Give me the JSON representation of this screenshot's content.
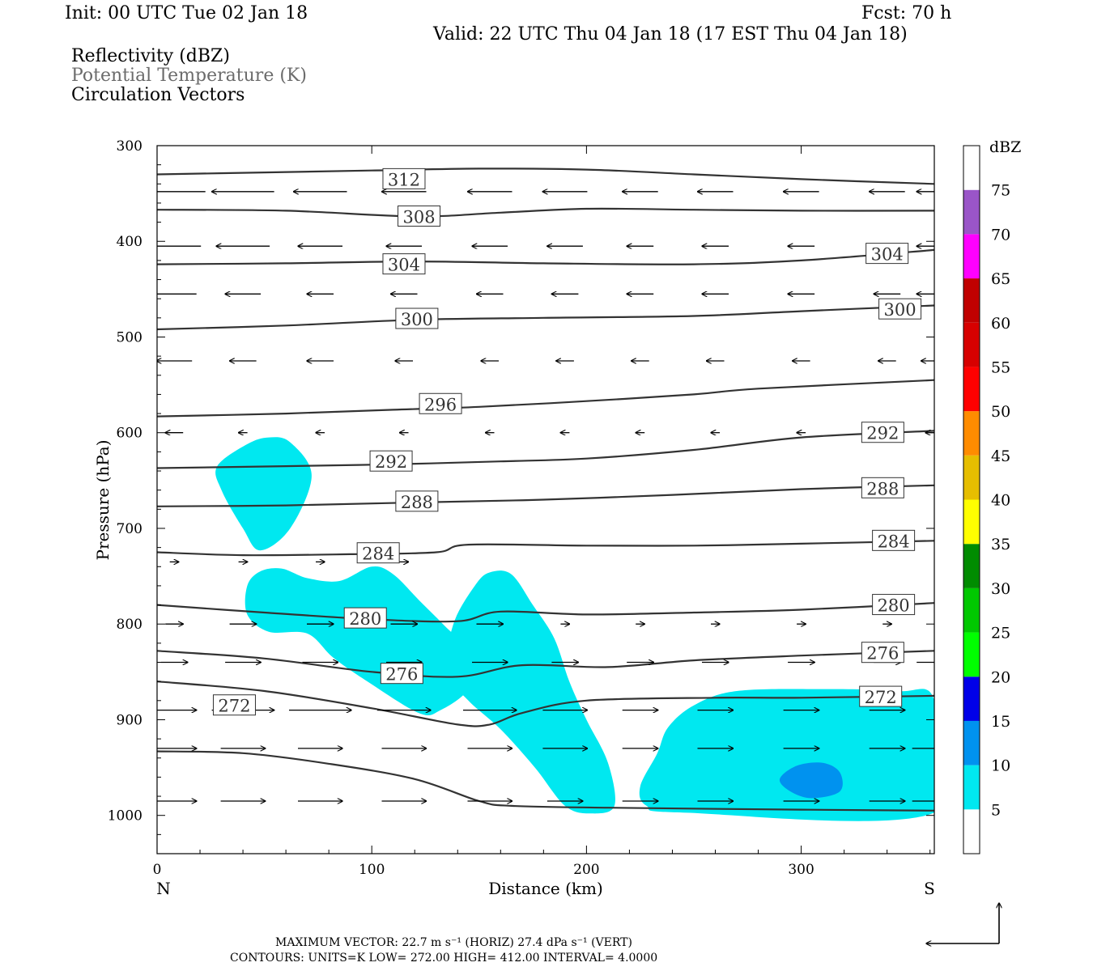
{
  "header": {
    "init": "Init: 00 UTC Tue 02 Jan 18",
    "fcst": "Fcst:   70 h",
    "valid": "Valid: 22 UTC Thu 04 Jan 18 (17 EST Thu 04 Jan 18)",
    "field1": "Reflectivity (dBZ)",
    "field2": "Potential Temperature (K)",
    "field3": "Circulation Vectors"
  },
  "footer": {
    "line1": "MAXIMUM VECTOR:  22.7 m s⁻¹ (HORIZ)        27.4 dPa s⁻¹ (VERT)",
    "line2": "CONTOURS:  UNITS=K  LOW=  272.00       HIGH=  412.00       INTERVAL=    4.0000"
  },
  "colors": {
    "contour": "#333333",
    "fill5": "#00e8f0",
    "fill10": "#0092ef"
  },
  "chart_data": {
    "type": "contour-cross-section",
    "xlabel": "Distance (km)",
    "ylabel": "Pressure (hPa)",
    "xlim": [
      0,
      362
    ],
    "ylim": [
      1040,
      300
    ],
    "x_ticks": [
      0,
      100,
      200,
      300
    ],
    "y_ticks": [
      300,
      400,
      500,
      600,
      700,
      800,
      900,
      1000
    ],
    "left_end": "N",
    "right_end": "S",
    "colorbar": {
      "label": "dBZ",
      "levels": [
        5,
        10,
        15,
        20,
        25,
        30,
        35,
        40,
        45,
        50,
        55,
        60,
        65,
        70,
        75
      ],
      "colors": [
        "#ffffff",
        "#00e8f0",
        "#0092ef",
        "#0000e8",
        "#00ff00",
        "#00c800",
        "#008c00",
        "#ffff00",
        "#e6be00",
        "#ff8c00",
        "#ff0000",
        "#d70000",
        "#c00000",
        "#ff00ff",
        "#9a55c8",
        "#ffffff"
      ]
    },
    "reflectivity_regions": [
      {
        "level": 5,
        "points": [
          [
            28,
            635
          ],
          [
            42,
            612
          ],
          [
            52,
            605
          ],
          [
            62,
            610
          ],
          [
            72,
            645
          ],
          [
            62,
            700
          ],
          [
            48,
            723
          ],
          [
            40,
            700
          ],
          [
            30,
            660
          ]
        ]
      },
      {
        "level": 5,
        "points": [
          [
            42,
            760
          ],
          [
            48,
            745
          ],
          [
            58,
            742
          ],
          [
            70,
            752
          ],
          [
            85,
            755
          ],
          [
            100,
            740
          ],
          [
            110,
            748
          ],
          [
            122,
            775
          ],
          [
            134,
            802
          ],
          [
            148,
            835
          ],
          [
            145,
            868
          ],
          [
            132,
            890
          ],
          [
            122,
            893
          ],
          [
            98,
            860
          ],
          [
            82,
            835
          ],
          [
            70,
            810
          ],
          [
            52,
            808
          ],
          [
            42,
            790
          ]
        ]
      },
      {
        "level": 5,
        "points": [
          [
            138,
            800
          ],
          [
            148,
            760
          ],
          [
            155,
            746
          ],
          [
            165,
            748
          ],
          [
            175,
            780
          ],
          [
            185,
            815
          ],
          [
            192,
            860
          ],
          [
            200,
            900
          ],
          [
            210,
            945
          ],
          [
            213,
            990
          ],
          [
            202,
            998
          ],
          [
            190,
            990
          ],
          [
            176,
            950
          ],
          [
            160,
            910
          ],
          [
            145,
            880
          ],
          [
            135,
            850
          ]
        ]
      },
      {
        "level": 5,
        "points": [
          [
            225,
            970
          ],
          [
            233,
            935
          ],
          [
            238,
            908
          ],
          [
            250,
            885
          ],
          [
            270,
            870
          ],
          [
            310,
            868
          ],
          [
            345,
            870
          ],
          [
            362,
            880
          ],
          [
            362,
            997
          ],
          [
            245,
            997
          ],
          [
            228,
            990
          ]
        ]
      },
      {
        "level": 10,
        "points": [
          [
            290,
            962
          ],
          [
            298,
            948
          ],
          [
            310,
            945
          ],
          [
            318,
            955
          ],
          [
            318,
            975
          ],
          [
            305,
            982
          ],
          [
            295,
            975
          ]
        ]
      }
    ],
    "theta_contours": [
      {
        "value": 312,
        "points": [
          [
            0,
            330
          ],
          [
            50,
            328
          ],
          [
            100,
            326
          ],
          [
            150,
            324
          ],
          [
            200,
            325
          ],
          [
            250,
            330
          ],
          [
            300,
            335
          ],
          [
            362,
            340
          ]
        ],
        "labels": [
          [
            115,
            335
          ]
        ]
      },
      {
        "value": 308,
        "points": [
          [
            0,
            367
          ],
          [
            60,
            368
          ],
          [
            120,
            374
          ],
          [
            160,
            370
          ],
          [
            200,
            366
          ],
          [
            250,
            367
          ],
          [
            300,
            368
          ],
          [
            362,
            368
          ]
        ],
        "labels": [
          [
            122,
            374
          ]
        ]
      },
      {
        "value": 304,
        "points": [
          [
            0,
            424
          ],
          [
            60,
            423
          ],
          [
            120,
            421
          ],
          [
            180,
            423
          ],
          [
            250,
            424
          ],
          [
            300,
            420
          ],
          [
            362,
            409
          ]
        ],
        "labels": [
          [
            115,
            424
          ],
          [
            340,
            413
          ]
        ]
      },
      {
        "value": 300,
        "points": [
          [
            0,
            492
          ],
          [
            60,
            488
          ],
          [
            120,
            482
          ],
          [
            180,
            480
          ],
          [
            250,
            478
          ],
          [
            300,
            473
          ],
          [
            362,
            467
          ]
        ],
        "labels": [
          [
            121,
            481
          ],
          [
            346,
            471
          ]
        ]
      },
      {
        "value": 296,
        "points": [
          [
            0,
            583
          ],
          [
            60,
            580
          ],
          [
            110,
            576
          ],
          [
            150,
            573
          ],
          [
            200,
            567
          ],
          [
            250,
            560
          ],
          [
            280,
            554
          ],
          [
            362,
            545
          ]
        ],
        "labels": [
          [
            132,
            570
          ]
        ]
      },
      {
        "value": 292,
        "points": [
          [
            0,
            637
          ],
          [
            60,
            635
          ],
          [
            110,
            633
          ],
          [
            160,
            630
          ],
          [
            200,
            627
          ],
          [
            250,
            618
          ],
          [
            300,
            605
          ],
          [
            362,
            598
          ]
        ],
        "labels": [
          [
            109,
            630
          ],
          [
            338,
            600
          ]
        ]
      },
      {
        "value": 288,
        "points": [
          [
            0,
            677
          ],
          [
            60,
            676
          ],
          [
            120,
            673
          ],
          [
            180,
            670
          ],
          [
            240,
            665
          ],
          [
            300,
            659
          ],
          [
            362,
            655
          ]
        ],
        "labels": [
          [
            121,
            672
          ],
          [
            338,
            658
          ]
        ]
      },
      {
        "value": 284,
        "points": [
          [
            0,
            725
          ],
          [
            40,
            728
          ],
          [
            90,
            727
          ],
          [
            130,
            725
          ],
          [
            145,
            717
          ],
          [
            200,
            718
          ],
          [
            250,
            718
          ],
          [
            300,
            716
          ],
          [
            362,
            713
          ]
        ],
        "labels": [
          [
            103,
            726
          ],
          [
            343,
            713
          ]
        ]
      },
      {
        "value": 280,
        "points": [
          [
            0,
            780
          ],
          [
            50,
            788
          ],
          [
            100,
            795
          ],
          [
            140,
            797
          ],
          [
            160,
            787
          ],
          [
            200,
            790
          ],
          [
            250,
            788
          ],
          [
            300,
            785
          ],
          [
            362,
            778
          ]
        ],
        "labels": [
          [
            97,
            794
          ],
          [
            343,
            780
          ]
        ]
      },
      {
        "value": 276,
        "points": [
          [
            0,
            828
          ],
          [
            50,
            836
          ],
          [
            100,
            850
          ],
          [
            140,
            855
          ],
          [
            170,
            843
          ],
          [
            210,
            845
          ],
          [
            250,
            838
          ],
          [
            300,
            833
          ],
          [
            362,
            828
          ]
        ],
        "labels": [
          [
            114,
            852
          ],
          [
            338,
            830
          ]
        ]
      },
      {
        "value": 272,
        "points": [
          [
            0,
            860
          ],
          [
            50,
            870
          ],
          [
            100,
            888
          ],
          [
            140,
            905
          ],
          [
            155,
            905
          ],
          [
            170,
            893
          ],
          [
            200,
            880
          ],
          [
            260,
            877
          ],
          [
            300,
            877
          ],
          [
            362,
            875
          ]
        ],
        "labels": [
          [
            36,
            885
          ],
          [
            337,
            876
          ]
        ]
      },
      {
        "value": null,
        "points": [
          [
            0,
            933
          ],
          [
            40,
            935
          ],
          [
            80,
            946
          ],
          [
            120,
            962
          ],
          [
            150,
            985
          ],
          [
            165,
            990
          ],
          [
            210,
            992
          ],
          [
            300,
            994
          ],
          [
            362,
            995
          ]
        ],
        "labels": []
      }
    ],
    "vectors": {
      "row_pressures": [
        348,
        405,
        455,
        525,
        600,
        640,
        735,
        800,
        840,
        890,
        930,
        985
      ],
      "columns": [
        8,
        40,
        76,
        115,
        155,
        190,
        225,
        260,
        300,
        340,
        360
      ],
      "u": [
        [
          -7,
          -7,
          -6,
          -5,
          -5,
          -5,
          -4,
          -4,
          -4,
          -4,
          -3
        ],
        [
          -6,
          -6,
          -5,
          -4,
          -4,
          -4,
          -3,
          -3,
          -3,
          -3,
          -3
        ],
        [
          -5,
          -4,
          -3,
          -3,
          -3,
          -3,
          -3,
          -3,
          -3,
          -3,
          -3
        ],
        [
          -4,
          -3,
          -3,
          -2,
          -2,
          -2,
          -2,
          -2,
          -2,
          -2,
          -2
        ],
        [
          -2,
          -1,
          -1,
          -1,
          -1,
          -1,
          -1,
          -1,
          -1,
          -1,
          -1
        ],
        [
          0,
          0,
          0,
          0,
          0,
          0,
          0,
          0,
          0,
          0,
          0
        ],
        [
          1,
          1,
          1,
          1,
          0,
          0,
          0,
          0,
          0,
          0,
          0
        ],
        [
          2,
          3,
          3,
          3,
          3,
          1,
          1,
          1,
          1,
          1,
          0
        ],
        [
          3,
          4,
          4,
          4,
          4,
          3,
          3,
          3,
          3,
          3,
          3
        ],
        [
          5,
          7,
          7,
          6,
          6,
          5,
          4,
          4,
          4,
          4,
          0
        ],
        [
          5,
          5,
          5,
          5,
          5,
          5,
          4,
          4,
          4,
          4,
          4
        ],
        [
          5,
          5,
          5,
          5,
          5,
          4,
          4,
          4,
          4,
          4,
          4
        ]
      ],
      "w": [
        [
          0,
          0,
          0,
          0,
          0,
          0,
          0,
          0,
          0,
          0,
          0
        ],
        [
          0,
          0,
          0,
          0,
          0,
          0,
          0,
          0,
          0,
          0,
          0
        ],
        [
          0,
          0,
          0,
          0,
          0,
          0,
          0,
          0,
          0,
          0,
          0
        ],
        [
          0,
          0,
          0,
          0,
          0,
          0,
          0,
          0,
          0,
          0,
          0
        ],
        [
          0,
          0,
          0,
          0,
          0,
          0,
          0,
          0,
          0,
          0,
          0
        ],
        [
          0,
          0,
          0,
          0,
          0,
          0,
          0,
          0,
          0,
          0,
          0
        ],
        [
          0,
          0,
          0,
          0,
          0,
          0,
          0,
          0,
          0,
          0,
          0
        ],
        [
          0,
          0,
          0,
          0,
          0,
          0,
          0,
          0,
          0,
          0,
          0
        ],
        [
          0,
          0,
          0,
          0,
          0,
          0,
          0,
          0,
          0,
          0,
          0
        ],
        [
          0,
          0,
          0,
          0,
          0,
          0,
          0,
          0,
          0,
          0,
          0
        ],
        [
          0,
          0,
          0,
          0,
          0,
          0,
          0,
          0,
          0,
          0,
          0
        ],
        [
          0,
          0,
          0,
          0,
          0,
          0,
          0,
          0,
          0,
          0,
          0
        ]
      ]
    }
  }
}
